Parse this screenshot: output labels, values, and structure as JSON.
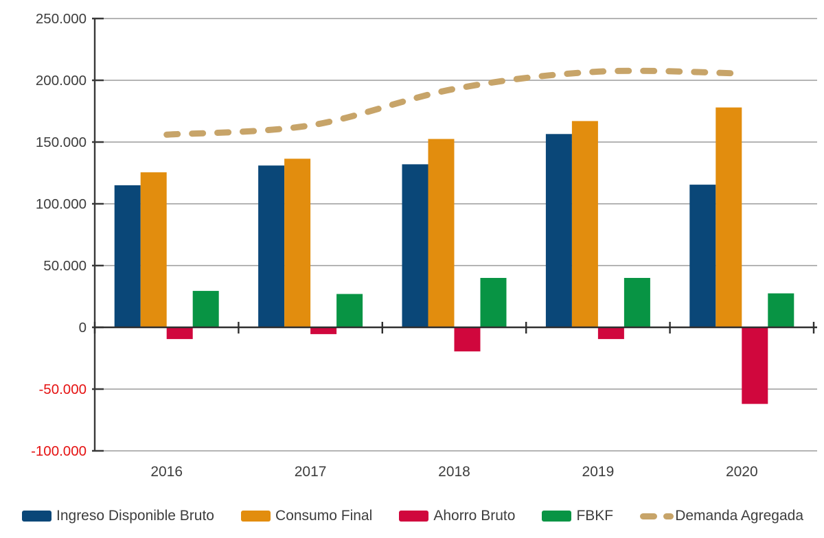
{
  "chart_data": {
    "type": "bar",
    "subtype": "grouped-bars-with-dashed-line",
    "title": "",
    "xlabel": "",
    "ylabel": "",
    "categories": [
      "2016",
      "2017",
      "2018",
      "2019",
      "2020"
    ],
    "series": [
      {
        "name": "Ingreso Disponible Bruto",
        "type": "bar",
        "color": "#0a4778",
        "values": [
          115000,
          131000,
          132000,
          156500,
          115500
        ]
      },
      {
        "name": "Consumo Final",
        "type": "bar",
        "color": "#e28d0e",
        "values": [
          125500,
          136500,
          152500,
          167000,
          178000
        ]
      },
      {
        "name": "Ahorro Bruto",
        "type": "bar",
        "color": "#d0073d",
        "values": [
          -9500,
          -5500,
          -19500,
          -9500,
          -62000
        ]
      },
      {
        "name": "FBKF",
        "type": "bar",
        "color": "#089444",
        "values": [
          29500,
          27000,
          40000,
          40000,
          27500
        ]
      },
      {
        "name": "Demanda Agregada",
        "type": "line",
        "dashed": true,
        "color": "#c7a469",
        "values": [
          156000,
          163500,
          193000,
          207000,
          205500
        ]
      }
    ],
    "ylim": [
      -100000,
      250000
    ],
    "ytick_interval": 50000,
    "ytick_labels": [
      "250.000",
      "200.000",
      "150.000",
      "100.000",
      "50.000",
      "0",
      "-50.000",
      "-100.000"
    ],
    "grid": true,
    "legend_position": "bottom",
    "colors": {
      "gridline": "#a9a9a9",
      "axis": "#383838",
      "tick_label": "#3d3d3d",
      "negative_tick_label": "#e51212"
    }
  }
}
